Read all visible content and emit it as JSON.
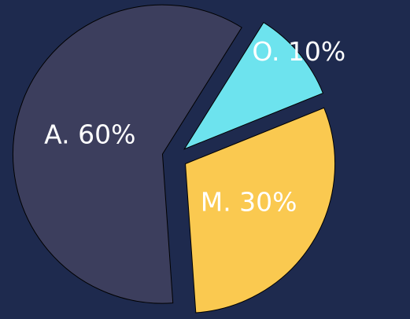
{
  "chart_data": {
    "type": "pie",
    "categories": [
      "O",
      "M",
      "A"
    ],
    "values": [
      10,
      30,
      60
    ],
    "value_labels": [
      "O. 10%",
      "M. 30%",
      "A. 60%"
    ],
    "colors": [
      "#6de3ee",
      "#fac950",
      "#3c3e5d"
    ]
  }
}
